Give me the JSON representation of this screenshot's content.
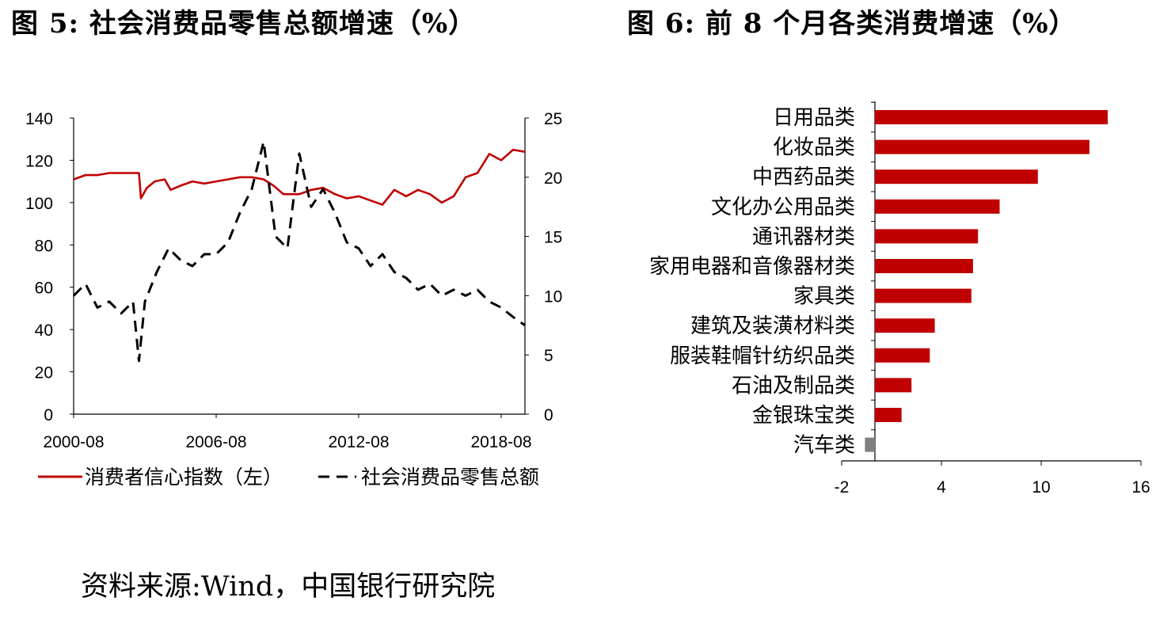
{
  "figure5": {
    "title": "图 5: 社会消费品零售总额增速（%）",
    "legend": [
      "消费者信心指数（左）",
      "社会消费品零售总额"
    ],
    "chart_data": {
      "type": "line",
      "x_tick_labels": [
        "2000-08",
        "2006-08",
        "2012-08",
        "2018-08"
      ],
      "x_range": [
        "2000-08",
        "2019-08"
      ],
      "y_left": {
        "range": [
          0,
          140
        ],
        "ticks": [
          0,
          20,
          40,
          60,
          80,
          100,
          120,
          140
        ]
      },
      "y_right": {
        "range": [
          0,
          25
        ],
        "ticks": [
          0,
          5,
          10,
          15,
          20,
          25
        ]
      },
      "series": [
        {
          "name": "消费者信心指数（左）",
          "axis": "left",
          "color": "#c00000",
          "style": "solid",
          "points": [
            [
              "2000-08",
              111
            ],
            [
              "2001-02",
              113
            ],
            [
              "2001-08",
              113
            ],
            [
              "2002-02",
              114
            ],
            [
              "2002-08",
              114
            ],
            [
              "2003-02",
              114
            ],
            [
              "2003-05",
              114
            ],
            [
              "2003-06",
              102
            ],
            [
              "2003-09",
              107
            ],
            [
              "2004-01",
              110
            ],
            [
              "2004-06",
              111
            ],
            [
              "2004-09",
              106
            ],
            [
              "2005-02",
              108
            ],
            [
              "2005-08",
              110
            ],
            [
              "2006-02",
              109
            ],
            [
              "2006-08",
              110
            ],
            [
              "2007-02",
              111
            ],
            [
              "2007-08",
              112
            ],
            [
              "2008-02",
              112
            ],
            [
              "2008-08",
              111
            ],
            [
              "2009-01",
              108
            ],
            [
              "2009-06",
              104
            ],
            [
              "2010-02",
              104
            ],
            [
              "2010-08",
              106
            ],
            [
              "2011-02",
              107
            ],
            [
              "2011-08",
              104
            ],
            [
              "2012-02",
              102
            ],
            [
              "2012-08",
              103
            ],
            [
              "2013-02",
              101
            ],
            [
              "2013-08",
              99
            ],
            [
              "2014-02",
              106
            ],
            [
              "2014-08",
              103
            ],
            [
              "2015-02",
              106
            ],
            [
              "2015-08",
              104
            ],
            [
              "2016-02",
              100
            ],
            [
              "2016-08",
              103
            ],
            [
              "2017-02",
              112
            ],
            [
              "2017-08",
              114
            ],
            [
              "2018-02",
              123
            ],
            [
              "2018-08",
              120
            ],
            [
              "2019-02",
              125
            ],
            [
              "2019-08",
              124
            ]
          ]
        },
        {
          "name": "社会消费品零售总额",
          "axis": "right",
          "color": "#000000",
          "style": "dashed",
          "points": [
            [
              "2000-08",
              10
            ],
            [
              "2001-02",
              11
            ],
            [
              "2001-08",
              9
            ],
            [
              "2002-02",
              9.5
            ],
            [
              "2002-08",
              8.5
            ],
            [
              "2003-02",
              9.5
            ],
            [
              "2003-05",
              4.5
            ],
            [
              "2003-08",
              9.5
            ],
            [
              "2004-02",
              12
            ],
            [
              "2004-08",
              14
            ],
            [
              "2005-02",
              13
            ],
            [
              "2005-08",
              12.5
            ],
            [
              "2006-02",
              13.5
            ],
            [
              "2006-08",
              13.5
            ],
            [
              "2007-02",
              14.5
            ],
            [
              "2007-08",
              17
            ],
            [
              "2008-02",
              19
            ],
            [
              "2008-08",
              23
            ],
            [
              "2009-02",
              15
            ],
            [
              "2009-08",
              14
            ],
            [
              "2010-02",
              22
            ],
            [
              "2010-08",
              17.5
            ],
            [
              "2011-02",
              19
            ],
            [
              "2011-08",
              17
            ],
            [
              "2012-02",
              14.5
            ],
            [
              "2012-08",
              14
            ],
            [
              "2013-02",
              12.5
            ],
            [
              "2013-08",
              13.5
            ],
            [
              "2014-02",
              12
            ],
            [
              "2014-08",
              11.5
            ],
            [
              "2015-02",
              10.5
            ],
            [
              "2015-08",
              11
            ],
            [
              "2016-02",
              10
            ],
            [
              "2016-08",
              10.5
            ],
            [
              "2017-02",
              10
            ],
            [
              "2017-08",
              10.5
            ],
            [
              "2018-02",
              9.5
            ],
            [
              "2018-08",
              9
            ],
            [
              "2019-02",
              8.2
            ],
            [
              "2019-08",
              7.5
            ]
          ]
        }
      ]
    }
  },
  "figure6": {
    "title": "图 6: 前 8 个月各类消费增速（%）",
    "chart_data": {
      "type": "bar",
      "orientation": "horizontal",
      "x_range": [
        -2,
        16
      ],
      "x_ticks": [
        -2,
        4,
        10,
        16
      ],
      "categories": [
        "日用品类",
        "化妆品类",
        "中西药品类",
        "文化办公用品类",
        "通讯器材类",
        "家用电器和音像器材类",
        "家具类",
        "建筑及装潢材料类",
        "服装鞋帽针纺织品类",
        "石油及制品类",
        "金银珠宝类",
        "汽车类"
      ],
      "values": [
        14.0,
        12.9,
        9.8,
        7.5,
        6.2,
        5.9,
        5.8,
        3.6,
        3.3,
        2.2,
        1.6,
        -0.6
      ],
      "colors": {
        "positive": "#c00000",
        "negative": "#7f7f7f"
      }
    }
  },
  "source": "资料来源:Wind，中国银行研究院"
}
